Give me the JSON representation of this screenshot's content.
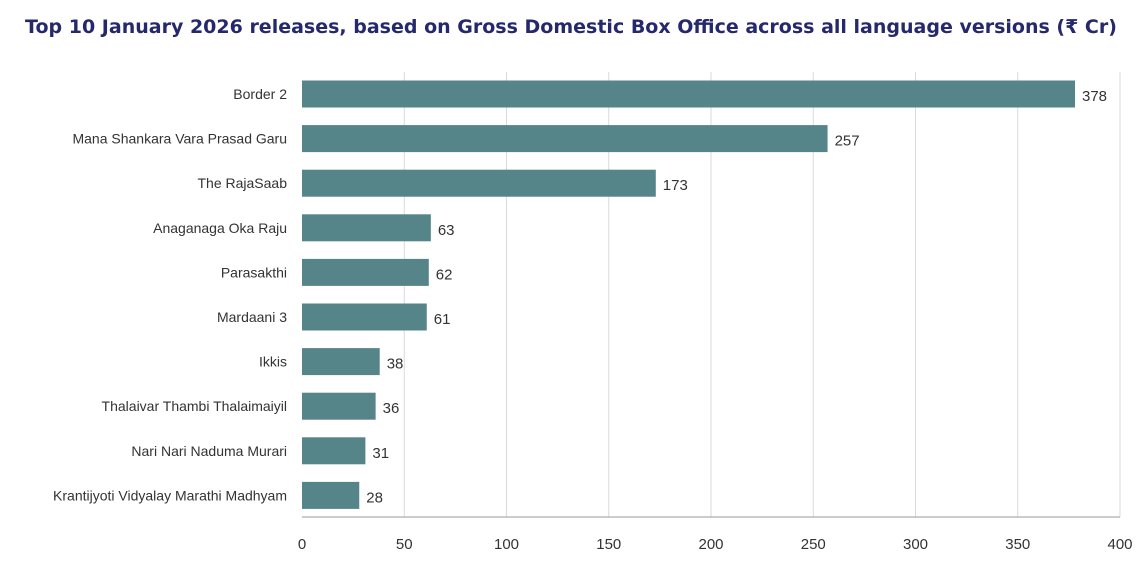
{
  "chart_data": {
    "type": "bar",
    "orientation": "horizontal",
    "title": "Top 10 January 2026 releases, based on Gross Domestic Box Office across all language versions (₹ Cr)",
    "categories": [
      "Border 2",
      "Mana Shankara Vara Prasad Garu",
      "The RajaSaab",
      "Anaganaga Oka Raju",
      "Parasakthi",
      "Mardaani 3",
      "Ikkis",
      "Thalaivar Thambi Thalaimaiyil",
      "Nari Nari Naduma Murari",
      "Krantijyoti Vidyalay Marathi Madhyam"
    ],
    "values": [
      378,
      257,
      173,
      63,
      62,
      61,
      38,
      36,
      31,
      28
    ],
    "xlim": [
      0,
      400
    ],
    "xticks": [
      0,
      50,
      100,
      150,
      200,
      250,
      300,
      350,
      400
    ],
    "grid": "vertical",
    "legend": "none",
    "bar_color": "#558489",
    "title_color": "#25286b"
  }
}
